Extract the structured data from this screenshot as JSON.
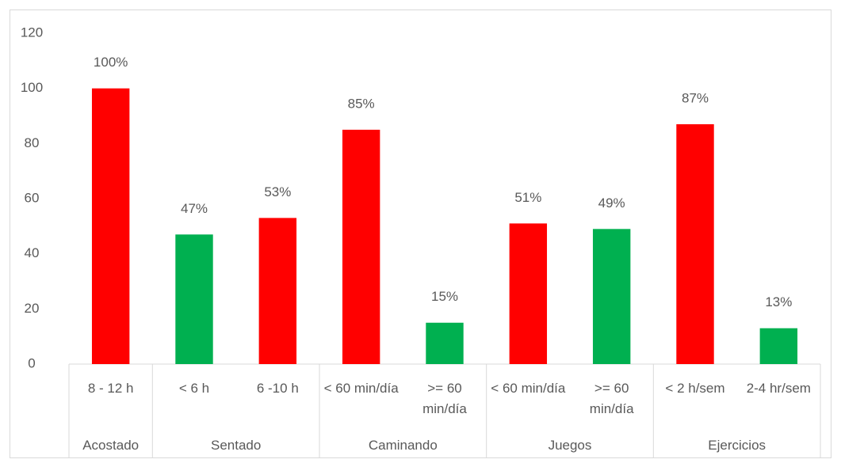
{
  "chart_data": {
    "type": "bar",
    "categories": [
      "8 - 12 h",
      "< 6 h",
      "6 -10 h",
      "< 60 min/día",
      ">= 60 min/día",
      "< 60 min/día",
      ">= 60 min/día",
      "< 2 h/sem",
      "2-4 hr/sem"
    ],
    "groups": [
      {
        "name": "Acostado",
        "count": 1
      },
      {
        "name": "Sentado",
        "count": 2
      },
      {
        "name": "Caminando",
        "count": 2
      },
      {
        "name": "Juegos",
        "count": 2
      },
      {
        "name": "Ejercicios",
        "count": 2
      }
    ],
    "values": [
      100,
      47,
      53,
      85,
      15,
      51,
      49,
      87,
      13
    ],
    "value_labels": [
      "100%",
      "47%",
      "53%",
      "85%",
      "15%",
      "51%",
      "49%",
      "87%",
      "13%"
    ],
    "colors": [
      "#ff0000",
      "#00b050",
      "#ff0000",
      "#ff0000",
      "#00b050",
      "#ff0000",
      "#00b050",
      "#ff0000",
      "#00b050"
    ],
    "ylim": [
      0,
      120
    ],
    "yticks": [
      0,
      20,
      40,
      60,
      80,
      100,
      120
    ],
    "grid": false
  }
}
